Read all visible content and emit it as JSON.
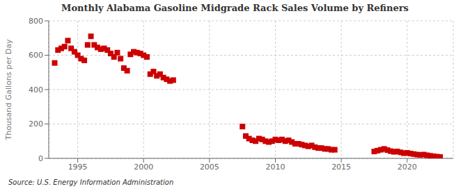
{
  "chart_data": {
    "type": "scatter",
    "title": "Monthly Alabama Gasoline Midgrade Rack Sales Volume by Refiners",
    "ylabel": "Thousand Gallons per Day",
    "annotation": "Source: U.S. Energy Information Administration",
    "color": "#cc0000",
    "marker": "square",
    "grid": true,
    "xlim": [
      1992.8,
      2023.5
    ],
    "xticks": [
      1995,
      2000,
      2005,
      2010,
      2015,
      2020
    ],
    "ylim": [
      0,
      800
    ],
    "yticks": [
      0,
      200,
      400,
      600,
      800
    ],
    "x": [
      1993.25,
      1993.5,
      1993.75,
      1994.0,
      1994.25,
      1994.5,
      1994.75,
      1995.0,
      1995.25,
      1995.5,
      1995.75,
      1996.0,
      1996.25,
      1996.5,
      1996.75,
      1997.0,
      1997.25,
      1997.5,
      1997.75,
      1998.0,
      1998.25,
      1998.5,
      1998.75,
      1999.0,
      1999.25,
      1999.5,
      1999.75,
      2000.0,
      2000.25,
      2000.5,
      2000.75,
      2001.0,
      2001.25,
      2001.5,
      2001.75,
      2002.0,
      2002.25,
      2007.5,
      2007.75,
      2008.0,
      2008.25,
      2008.5,
      2008.75,
      2009.0,
      2009.25,
      2009.5,
      2009.75,
      2010.0,
      2010.25,
      2010.5,
      2010.75,
      2011.0,
      2011.25,
      2011.5,
      2011.75,
      2012.0,
      2012.25,
      2012.5,
      2012.75,
      2013.0,
      2013.25,
      2013.5,
      2013.75,
      2014.0,
      2014.25,
      2014.5,
      2017.5,
      2017.75,
      2018.0,
      2018.25,
      2018.5,
      2018.75,
      2019.0,
      2019.25,
      2019.5,
      2019.75,
      2020.0,
      2020.25,
      2020.5,
      2020.75,
      2021.0,
      2021.25,
      2021.5,
      2021.75,
      2022.0,
      2022.25,
      2022.5
    ],
    "values": [
      555,
      630,
      640,
      650,
      685,
      640,
      620,
      600,
      580,
      570,
      660,
      710,
      660,
      645,
      635,
      640,
      630,
      610,
      590,
      615,
      580,
      525,
      510,
      605,
      620,
      615,
      610,
      600,
      590,
      490,
      505,
      480,
      490,
      470,
      460,
      450,
      455,
      185,
      130,
      115,
      105,
      100,
      115,
      110,
      100,
      95,
      100,
      110,
      105,
      110,
      100,
      105,
      95,
      85,
      85,
      80,
      75,
      70,
      75,
      65,
      60,
      60,
      55,
      55,
      50,
      50,
      40,
      45,
      50,
      55,
      48,
      42,
      38,
      40,
      35,
      30,
      32,
      28,
      25,
      22,
      20,
      22,
      18,
      15,
      12,
      10,
      8
    ]
  }
}
